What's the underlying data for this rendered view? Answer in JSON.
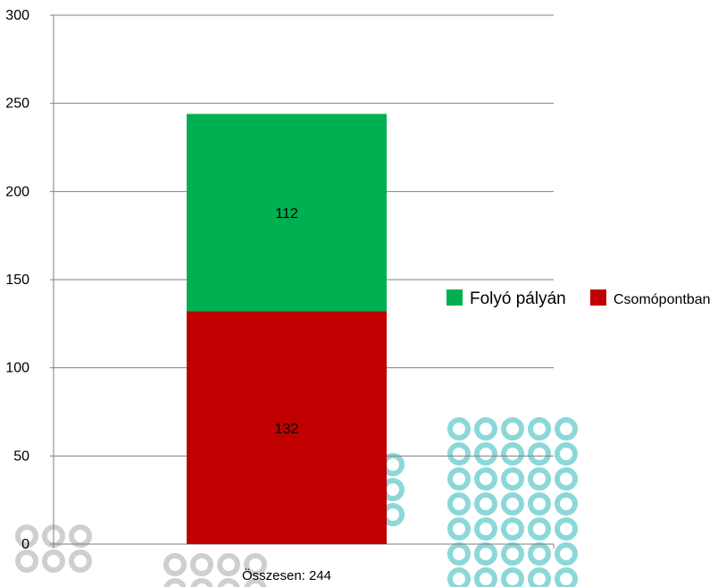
{
  "chart_data": {
    "type": "bar",
    "stacked": true,
    "categories": [
      "Összesen: 244"
    ],
    "series": [
      {
        "name": "Csomópontban",
        "values": [
          132
        ],
        "color": "#c00000"
      },
      {
        "name": "Folyó pályán",
        "values": [
          112
        ],
        "color": "#00b050"
      }
    ],
    "data_labels": [
      "132",
      "112"
    ],
    "title": "",
    "xlabel": "",
    "ylabel": "",
    "ylim": [
      0,
      300
    ],
    "yticks": [
      "0",
      "50",
      "100",
      "150",
      "200",
      "250",
      "300"
    ],
    "grid": true,
    "legend_position": "right",
    "colors": {
      "gridline": "#7f7f7f",
      "axis": "#7f7f7f",
      "watermark": "#bfbfbf",
      "watermark_accent": "#66cccc"
    }
  }
}
